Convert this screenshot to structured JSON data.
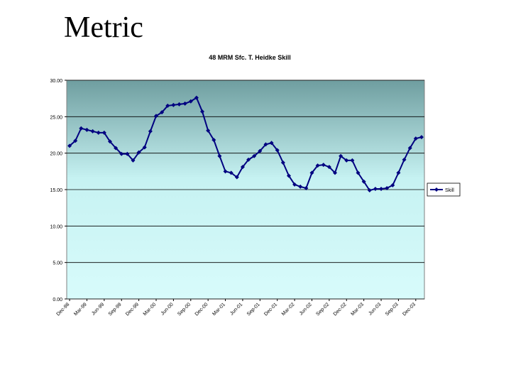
{
  "slide": {
    "title": "Metric"
  },
  "chart_data": {
    "type": "line",
    "title": "48 MRM Sfc. T. Heidke Skill",
    "categories": [
      "Dec-98",
      null,
      null,
      "Mar-99",
      null,
      null,
      "Jun-99",
      null,
      null,
      "Sep-99",
      null,
      null,
      "Dec-99",
      null,
      null,
      "Mar-00",
      null,
      null,
      "Jun-00",
      null,
      null,
      "Sep-00",
      null,
      null,
      "Dec-00",
      null,
      null,
      "Mar-01",
      null,
      null,
      "Jun-01",
      null,
      null,
      "Sep-01",
      null,
      null,
      "Dec-01",
      null,
      null,
      "Mar-02",
      null,
      null,
      "Jun-02",
      null,
      null,
      "Sep-02",
      null,
      null,
      "Dec-02",
      null,
      null,
      "Mar-03",
      null,
      null,
      "Jun-03",
      null,
      null,
      "Sep-03",
      null,
      null,
      "Dec-03",
      null
    ],
    "series": [
      {
        "name": "Skill",
        "color": "#000080",
        "values": [
          21.0,
          21.7,
          23.4,
          23.2,
          23.0,
          22.8,
          22.8,
          21.6,
          20.7,
          19.9,
          19.9,
          19.0,
          20.1,
          20.8,
          23.0,
          25.1,
          25.6,
          26.5,
          26.6,
          26.7,
          26.8,
          27.1,
          27.6,
          25.7,
          23.1,
          21.8,
          19.6,
          17.5,
          17.3,
          16.7,
          18.1,
          19.1,
          19.6,
          20.3,
          21.2,
          21.4,
          20.4,
          18.7,
          16.9,
          15.7,
          15.4,
          15.2,
          17.3,
          18.3,
          18.4,
          18.1,
          17.3,
          19.6,
          19.0,
          19.0,
          17.3,
          16.1,
          14.9,
          15.1,
          15.1,
          15.2,
          15.6,
          17.3,
          19.1,
          20.7,
          22.0,
          22.2
        ]
      }
    ],
    "ylim": [
      0,
      30
    ],
    "yticks": [
      {
        "value": 0,
        "label": "0.00"
      },
      {
        "value": 5,
        "label": "5.00"
      },
      {
        "value": 10,
        "label": "10.00"
      },
      {
        "value": 15,
        "label": "15.00"
      },
      {
        "value": 20,
        "label": "20.00"
      },
      {
        "value": 25,
        "label": "25.00"
      },
      {
        "value": 30,
        "label": "30.00"
      }
    ],
    "grid": true,
    "legend": "right"
  }
}
